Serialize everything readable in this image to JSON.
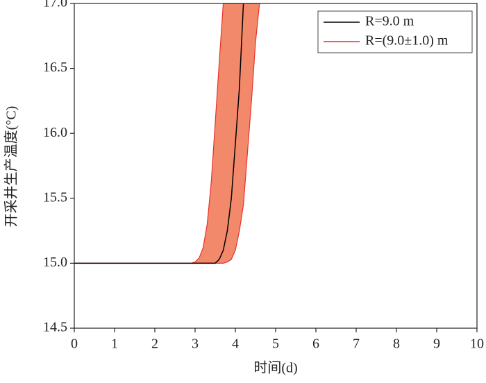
{
  "chart_data": {
    "type": "line",
    "x_label": "时间(d)",
    "y_label": "开采井生产温度(°C)",
    "x": [
      0,
      1,
      2,
      2.9,
      3.0,
      3.1,
      3.2,
      3.3,
      3.4,
      3.5,
      3.6,
      3.7,
      3.8,
      3.9,
      4.0,
      4.1,
      4.2,
      4.3,
      4.4,
      4.5,
      4.6
    ],
    "series": [
      {
        "name": "R=9.0 m",
        "color": "#000000",
        "values": [
          15,
          15,
          15,
          15,
          15,
          15,
          15,
          15,
          15,
          15,
          15.03,
          15.1,
          15.25,
          15.5,
          15.92,
          16.35,
          17.0,
          null,
          null,
          null,
          null
        ]
      },
      {
        "name": "R=(9.0±1.0) m",
        "color": "#e8312a",
        "fill": "#f2896b",
        "upper": [
          15,
          15,
          15,
          15,
          15.01,
          15.04,
          15.12,
          15.3,
          15.62,
          16.08,
          16.55,
          17.0,
          null,
          null,
          null,
          null,
          null,
          null,
          null,
          null,
          null
        ],
        "lower": [
          15,
          15,
          15,
          15,
          15,
          15,
          15,
          15,
          15,
          15,
          15,
          15,
          15.01,
          15.03,
          15.1,
          15.25,
          15.45,
          15.85,
          16.25,
          16.7,
          17.0
        ]
      }
    ],
    "xlim": [
      0,
      10
    ],
    "xticks": [
      0,
      1,
      2,
      3,
      4,
      5,
      6,
      7,
      8,
      9,
      10
    ],
    "ylim": [
      14.5,
      17
    ],
    "yticks": [
      14.5,
      {
        "value": 15,
        "label": "15.0"
      },
      15.5,
      {
        "value": 16,
        "label": "16.0"
      },
      16.5,
      {
        "value": 17,
        "label": "17.0"
      }
    ],
    "legend": "upper-right"
  }
}
